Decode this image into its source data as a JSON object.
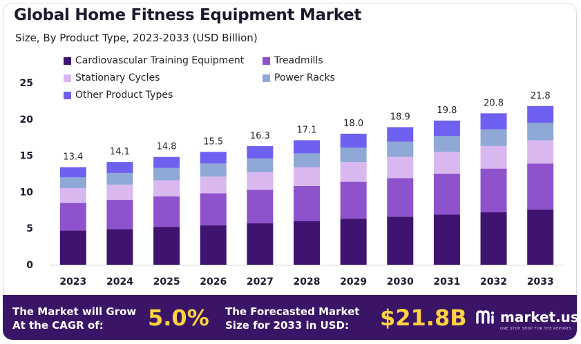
{
  "header": {
    "title": "Global Home Fitness Equipment Market",
    "subtitle": "Size, By Product Type, 2023-2033 (USD Billion)"
  },
  "chart_data": {
    "type": "bar",
    "stacked": true,
    "categories": [
      "2023",
      "2024",
      "2025",
      "2026",
      "2027",
      "2028",
      "2029",
      "2030",
      "2031",
      "2032",
      "2033"
    ],
    "totals": [
      13.4,
      14.1,
      14.8,
      15.5,
      16.3,
      17.1,
      18.0,
      18.9,
      19.8,
      20.8,
      21.8
    ],
    "total_labels": [
      "13.4",
      "14.1",
      "14.8",
      "15.5",
      "16.3",
      "17.1",
      "18.0",
      "18.9",
      "19.8",
      "20.8",
      "21.8"
    ],
    "series": [
      {
        "name": "Cardiovascular Training Equipment",
        "color": "#3f1470",
        "values": [
          4.7,
          4.9,
          5.2,
          5.4,
          5.7,
          6.0,
          6.3,
          6.6,
          6.9,
          7.2,
          7.6
        ]
      },
      {
        "name": "Treadmills",
        "color": "#8e52cc",
        "values": [
          3.8,
          4.0,
          4.2,
          4.4,
          4.6,
          4.8,
          5.1,
          5.3,
          5.6,
          6.0,
          6.3
        ]
      },
      {
        "name": "Stationary Cycles",
        "color": "#d9b8f0",
        "values": [
          2.0,
          2.1,
          2.2,
          2.3,
          2.4,
          2.6,
          2.7,
          2.9,
          3.0,
          3.1,
          3.2
        ]
      },
      {
        "name": "Power Racks",
        "color": "#8fa8d6",
        "values": [
          1.5,
          1.6,
          1.7,
          1.8,
          1.9,
          1.9,
          2.0,
          2.1,
          2.2,
          2.3,
          2.4
        ]
      },
      {
        "name": "Other Product Types",
        "color": "#6e60f0",
        "values": [
          1.4,
          1.5,
          1.5,
          1.6,
          1.7,
          1.8,
          1.9,
          2.0,
          2.1,
          2.2,
          2.3
        ]
      }
    ],
    "yticks": [
      "0",
      "5",
      "10",
      "15",
      "20",
      "25"
    ],
    "ytick_values": [
      0,
      5,
      10,
      15,
      20,
      25
    ],
    "ylim": [
      0,
      25
    ],
    "xlabel": "",
    "ylabel": "",
    "grid": false,
    "legend_position": "top-left"
  },
  "banner": {
    "cagr_line1": "The Market will Grow",
    "cagr_line2": "At the CAGR of:",
    "cagr_value": "5.0%",
    "forecast_line1": "The Forecasted Market",
    "forecast_line2": "Size for 2033 in USD:",
    "forecast_value": "$21.8B",
    "brand": "market.us",
    "brand_tagline": "ONE STOP SHOP FOR THE REPORTS",
    "accent_color": "#ffd23f"
  }
}
